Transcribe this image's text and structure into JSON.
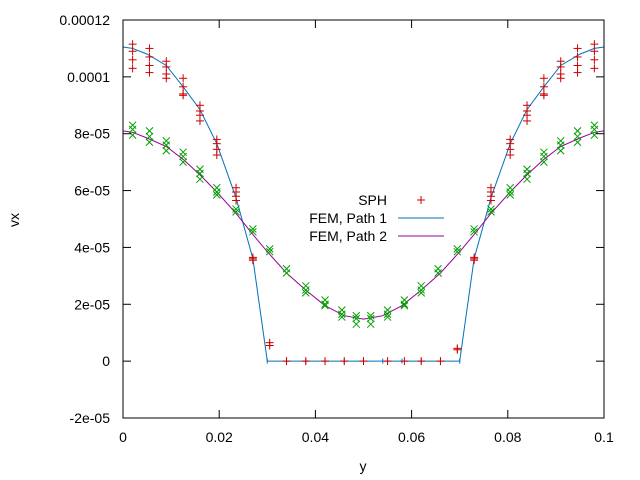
{
  "chart_data": {
    "type": "scatter",
    "title": "",
    "xlabel": "y",
    "ylabel": "vx",
    "xlim": [
      0,
      0.1
    ],
    "ylim": [
      -2e-05,
      0.00012
    ],
    "x_ticks": [
      0,
      0.02,
      0.04,
      0.06,
      0.08,
      0.1
    ],
    "x_tick_labels": [
      "0",
      "0.02",
      "0.04",
      "0.06",
      "0.08",
      "0.1"
    ],
    "y_ticks": [
      -2e-05,
      0,
      2e-05,
      4e-05,
      6e-05,
      8e-05,
      0.0001,
      0.00012
    ],
    "y_tick_labels": [
      "-2e-05",
      "0",
      "2e-05",
      "4e-05",
      "6e-05",
      "8e-05",
      "0.0001",
      "0.00012"
    ],
    "grid": false,
    "legend_position": "center",
    "legend": [
      {
        "label": "SPH",
        "marker": "plus",
        "color": "#cc0000"
      },
      {
        "label": "FEM, Path 1",
        "marker": "line",
        "color": "#0072bd"
      },
      {
        "label": "FEM, Path 2",
        "marker": "line",
        "color": "#990099"
      }
    ],
    "series": [
      {
        "name": "FEM, Path 1",
        "kind": "line",
        "color": "#0072bd",
        "x": [
          0,
          0.002,
          0.005,
          0.009,
          0.0125,
          0.016,
          0.0195,
          0.0235,
          0.027,
          0.03,
          0.034,
          0.038,
          0.042,
          0.046,
          0.05,
          0.054,
          0.058,
          0.062,
          0.066,
          0.07,
          0.073,
          0.0765,
          0.0805,
          0.084,
          0.0875,
          0.091,
          0.095,
          0.098,
          0.1
        ],
        "y": [
          0.0001105,
          0.00011,
          0.000108,
          0.000104,
          9.65e-05,
          8.85e-05,
          7.65e-05,
          5.75e-05,
          3.6e-05,
          0,
          0,
          0,
          0,
          0,
          0,
          0,
          0,
          0,
          0,
          0,
          3.6e-05,
          5.75e-05,
          7.65e-05,
          8.85e-05,
          9.65e-05,
          0.000104,
          0.000108,
          0.00011,
          0.0001105
        ]
      },
      {
        "name": "FEM, Path 2",
        "kind": "line",
        "color": "#990099",
        "x": [
          0,
          0.002,
          0.005,
          0.009,
          0.0125,
          0.016,
          0.0195,
          0.0235,
          0.027,
          0.03,
          0.034,
          0.038,
          0.042,
          0.046,
          0.05,
          0.054,
          0.058,
          0.062,
          0.066,
          0.07,
          0.073,
          0.0765,
          0.0805,
          0.084,
          0.0875,
          0.091,
          0.095,
          0.098,
          0.1
        ],
        "y": [
          8.1e-05,
          8.05e-05,
          7.85e-05,
          7.55e-05,
          7.1e-05,
          6.55e-05,
          5.95e-05,
          5.2e-05,
          4.45e-05,
          3.85e-05,
          3.1e-05,
          2.5e-05,
          1.95e-05,
          1.6e-05,
          1.48e-05,
          1.6e-05,
          1.95e-05,
          2.5e-05,
          3.1e-05,
          3.85e-05,
          4.45e-05,
          5.2e-05,
          5.95e-05,
          6.55e-05,
          7.1e-05,
          7.55e-05,
          7.85e-05,
          8.05e-05,
          8.1e-05
        ]
      },
      {
        "name": "SPH",
        "kind": "points",
        "marker": "plus",
        "color": "#cc0000",
        "x": [
          0.002,
          0.002,
          0.002,
          0.002,
          0.0055,
          0.0055,
          0.0055,
          0.0055,
          0.009,
          0.009,
          0.009,
          0.009,
          0.0125,
          0.0125,
          0.0125,
          0.0125,
          0.016,
          0.016,
          0.016,
          0.016,
          0.0195,
          0.0195,
          0.0195,
          0.0195,
          0.0235,
          0.0235,
          0.0235,
          0.0235,
          0.027,
          0.027,
          0.027,
          0.0305,
          0.0305,
          0.034,
          0.038,
          0.042,
          0.046,
          0.05,
          0.055,
          0.0585,
          0.062,
          0.066,
          0.0695,
          0.0695,
          0.073,
          0.073,
          0.073,
          0.0765,
          0.0765,
          0.0765,
          0.0765,
          0.0805,
          0.0805,
          0.0805,
          0.0805,
          0.084,
          0.084,
          0.084,
          0.084,
          0.0875,
          0.0875,
          0.0875,
          0.0875,
          0.091,
          0.091,
          0.091,
          0.091,
          0.0945,
          0.0945,
          0.0945,
          0.0945,
          0.098,
          0.098,
          0.098,
          0.098
        ],
        "y": [
          0.0001115,
          0.000109,
          0.000106,
          0.000103,
          0.00011,
          0.000107,
          0.000104,
          0.0001015,
          0.0001055,
          0.0001035,
          0.000101,
          9.95e-05,
          9.95e-05,
          9.65e-05,
          9.4e-05,
          9.35e-05,
          9e-05,
          8.8e-05,
          8.65e-05,
          8.45e-05,
          7.8e-05,
          7.65e-05,
          7.45e-05,
          7.25e-05,
          6.1e-05,
          5.95e-05,
          5.8e-05,
          5.65e-05,
          3.65e-05,
          3.6e-05,
          3.55e-05,
          6.5e-06,
          5.5e-06,
          0,
          0,
          0,
          0,
          0,
          0,
          0,
          0,
          0,
          4.5e-06,
          4e-06,
          3.65e-05,
          3.6e-05,
          3.55e-05,
          6.1e-05,
          5.95e-05,
          5.8e-05,
          5.65e-05,
          7.8e-05,
          7.65e-05,
          7.45e-05,
          7.25e-05,
          9e-05,
          8.8e-05,
          8.65e-05,
          8.45e-05,
          9.95e-05,
          9.65e-05,
          9.4e-05,
          9.35e-05,
          0.0001055,
          0.0001035,
          0.000101,
          9.95e-05,
          0.00011,
          0.000107,
          0.000104,
          0.0001015,
          0.0001115,
          0.000109,
          0.000106,
          0.000103
        ]
      },
      {
        "name": "",
        "kind": "points",
        "marker": "cross",
        "color": "#00a000",
        "x": [
          0.002,
          0.002,
          0.002,
          0.0055,
          0.0055,
          0.0055,
          0.009,
          0.009,
          0.009,
          0.0125,
          0.0125,
          0.0125,
          0.016,
          0.016,
          0.016,
          0.0195,
          0.0195,
          0.0195,
          0.0235,
          0.0235,
          0.027,
          0.027,
          0.0305,
          0.0305,
          0.034,
          0.034,
          0.038,
          0.038,
          0.038,
          0.042,
          0.042,
          0.042,
          0.0455,
          0.0455,
          0.0455,
          0.0485,
          0.0485,
          0.0485,
          0.0515,
          0.0515,
          0.0515,
          0.055,
          0.055,
          0.055,
          0.0585,
          0.0585,
          0.0585,
          0.062,
          0.062,
          0.062,
          0.0655,
          0.0655,
          0.0695,
          0.0695,
          0.073,
          0.073,
          0.0765,
          0.0765,
          0.0805,
          0.0805,
          0.0805,
          0.084,
          0.084,
          0.084,
          0.0875,
          0.0875,
          0.0875,
          0.091,
          0.091,
          0.091,
          0.0945,
          0.0945,
          0.0945,
          0.098,
          0.098,
          0.098
        ],
        "y": [
          8.3e-05,
          8.15e-05,
          7.95e-05,
          8.1e-05,
          7.9e-05,
          7.7e-05,
          7.75e-05,
          7.6e-05,
          7.4e-05,
          7.35e-05,
          7.2e-05,
          7e-05,
          6.75e-05,
          6.6e-05,
          6.4e-05,
          6.1e-05,
          5.95e-05,
          5.85e-05,
          5.35e-05,
          5.25e-05,
          4.65e-05,
          4.55e-05,
          3.95e-05,
          3.85e-05,
          3.25e-05,
          3.1e-05,
          2.65e-05,
          2.5e-05,
          2.4e-05,
          2.15e-05,
          2e-05,
          1.95e-05,
          1.8e-05,
          1.65e-05,
          1.55e-05,
          1.6e-05,
          1.5e-05,
          1.3e-05,
          1.6e-05,
          1.5e-05,
          1.3e-05,
          1.8e-05,
          1.65e-05,
          1.55e-05,
          2.15e-05,
          2e-05,
          1.95e-05,
          2.65e-05,
          2.5e-05,
          2.4e-05,
          3.25e-05,
          3.1e-05,
          3.95e-05,
          3.85e-05,
          4.65e-05,
          4.55e-05,
          5.35e-05,
          5.25e-05,
          6.1e-05,
          5.95e-05,
          5.85e-05,
          6.75e-05,
          6.6e-05,
          6.4e-05,
          7.35e-05,
          7.2e-05,
          7e-05,
          7.75e-05,
          7.6e-05,
          7.4e-05,
          8.1e-05,
          7.9e-05,
          7.7e-05,
          8.3e-05,
          8.15e-05,
          7.95e-05
        ]
      }
    ]
  }
}
